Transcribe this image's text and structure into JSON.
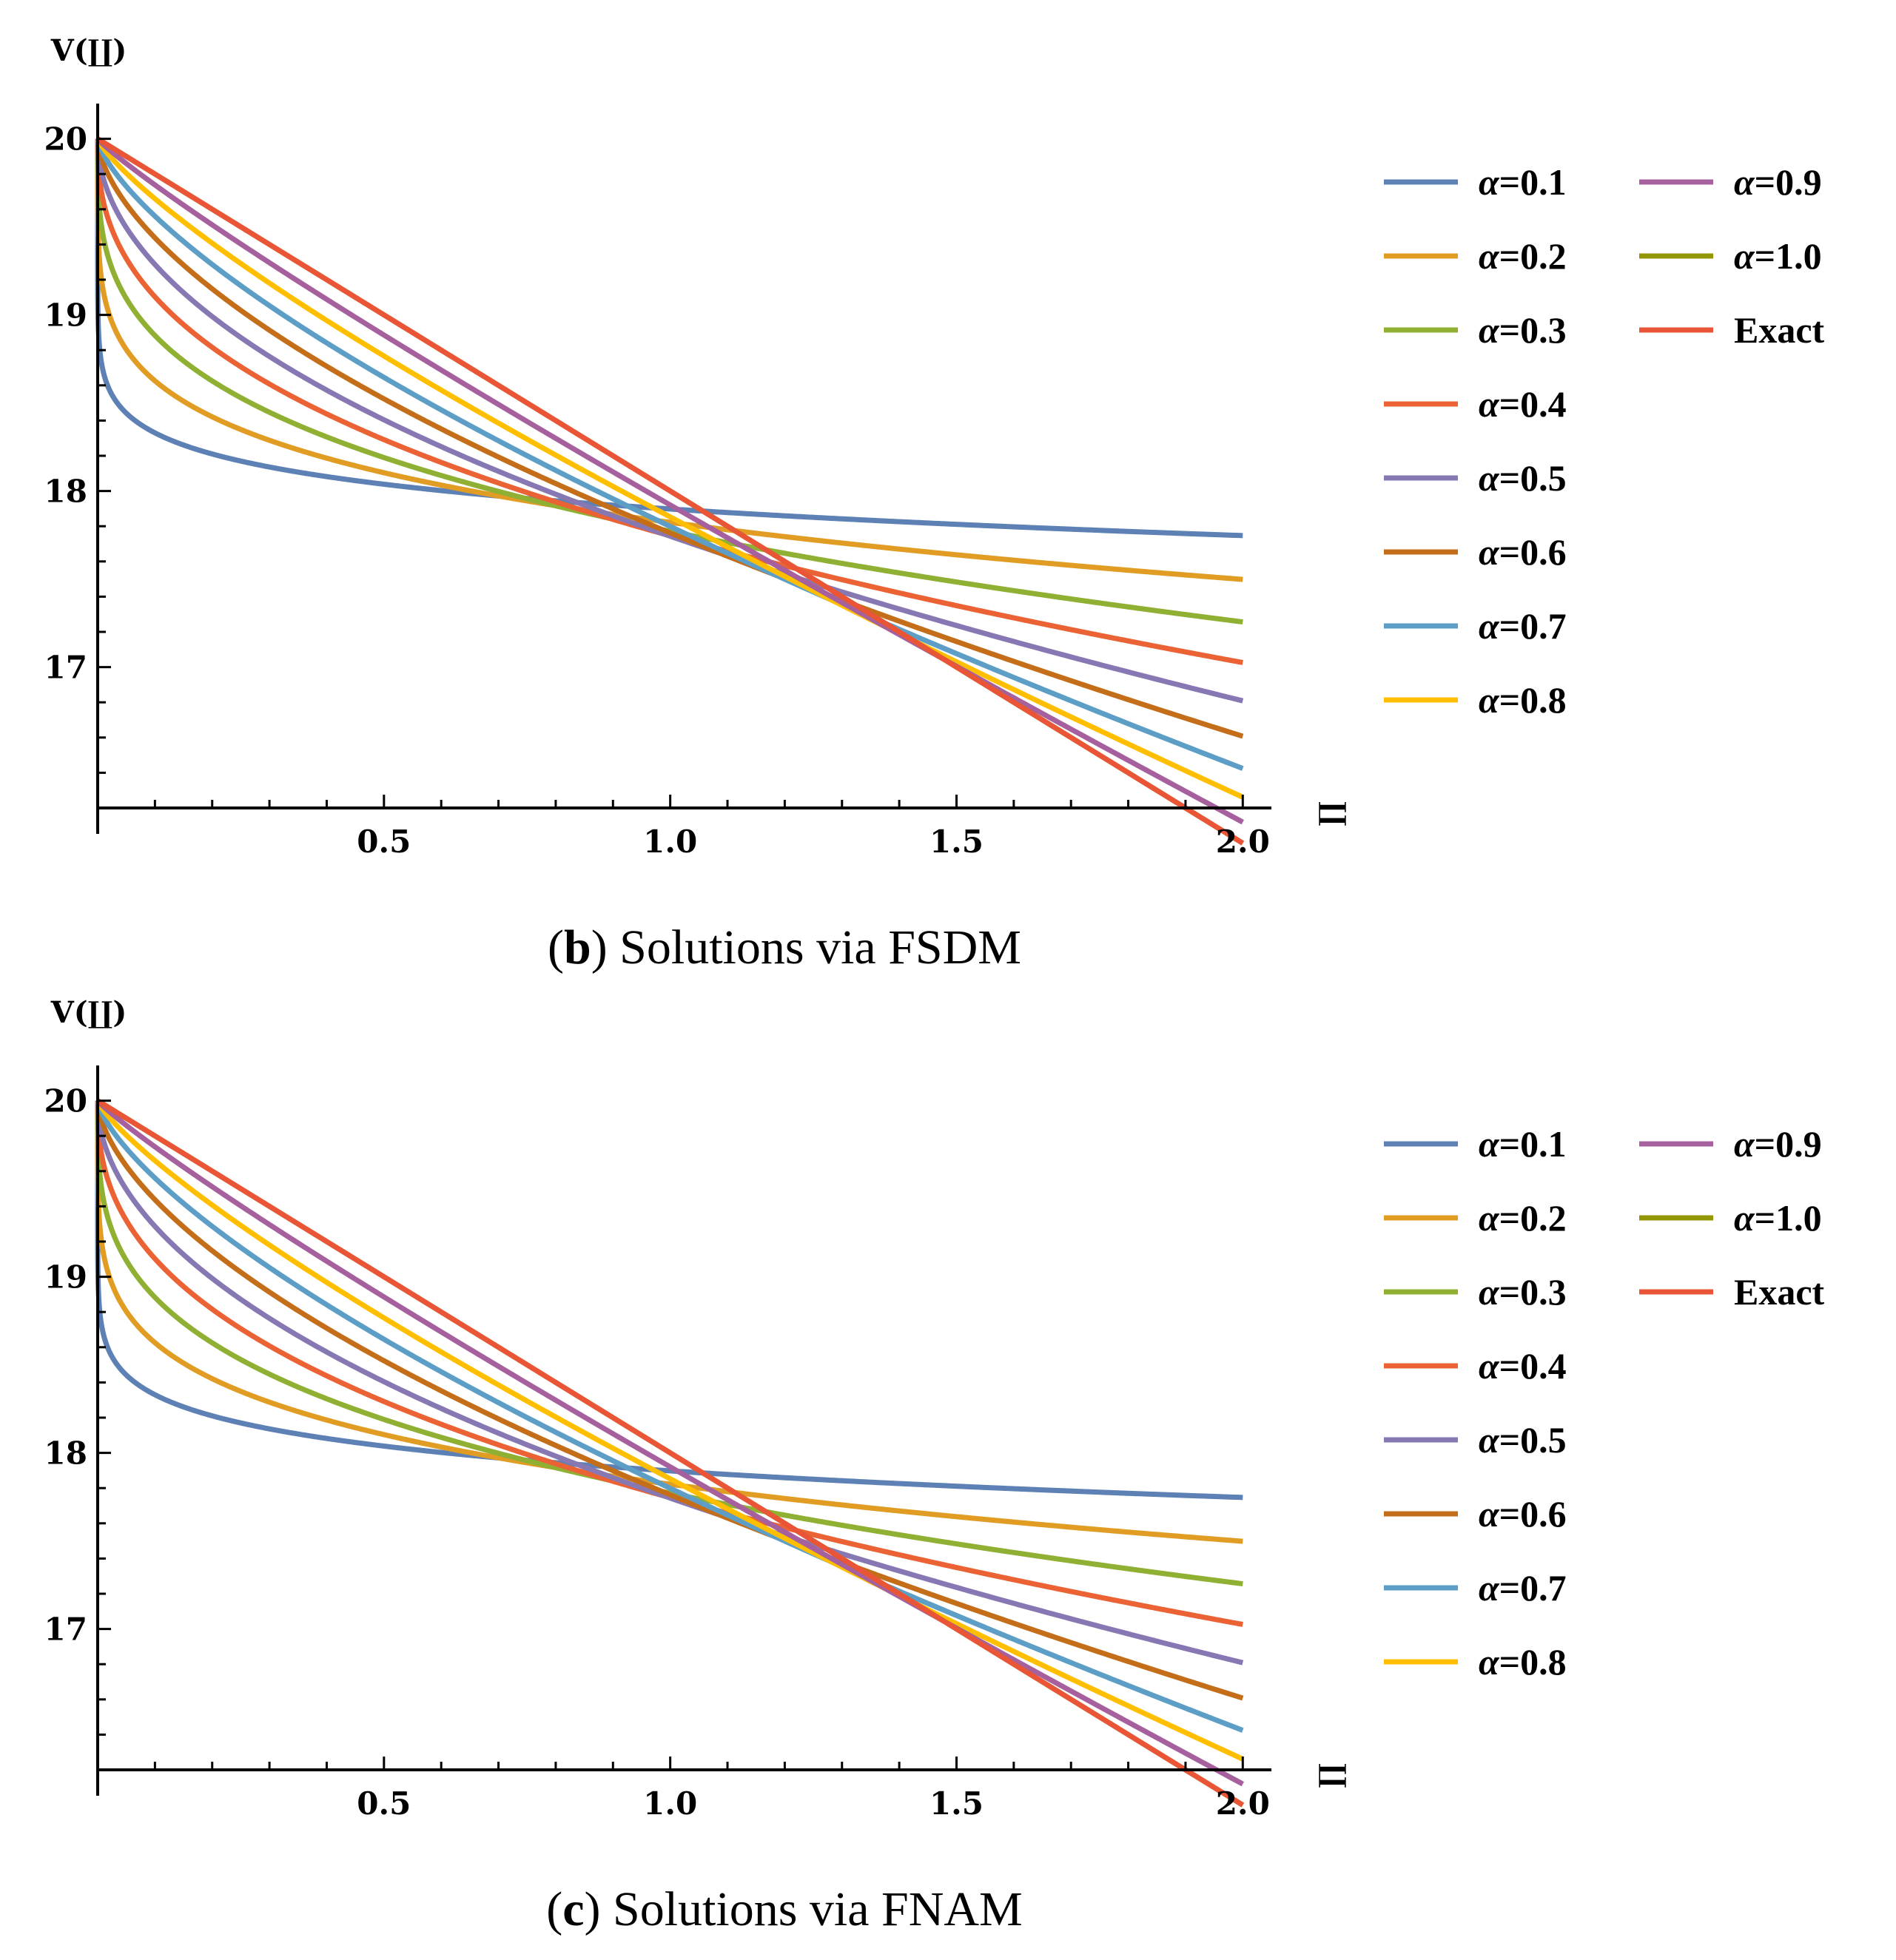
{
  "chart_data": [
    {
      "type": "line",
      "caption": {
        "letter": "b",
        "text": "Solutions via FSDM"
      },
      "ylabel": "V(∐)",
      "xlabel": "∐",
      "xlim": [
        0,
        2.05
      ],
      "ylim": [
        16.2,
        20.2
      ],
      "x_ticks": [
        "0.5",
        "1.0",
        "1.5",
        "2.0"
      ],
      "y_ticks": [
        "17",
        "18",
        "19",
        "20"
      ],
      "legend_position": "right",
      "series": [
        {
          "name": "α=0.1",
          "alpha": 0.1,
          "color": "#5E81B5"
        },
        {
          "name": "α=0.2",
          "alpha": 0.2,
          "color": "#E19C24"
        },
        {
          "name": "α=0.3",
          "alpha": 0.3,
          "color": "#8FB032"
        },
        {
          "name": "α=0.4",
          "alpha": 0.4,
          "color": "#EB6235"
        },
        {
          "name": "α=0.5",
          "alpha": 0.5,
          "color": "#8778B3"
        },
        {
          "name": "α=0.6",
          "alpha": 0.6,
          "color": "#C56E1A"
        },
        {
          "name": "α=0.7",
          "alpha": 0.7,
          "color": "#5D9EC7"
        },
        {
          "name": "α=0.8",
          "alpha": 0.8,
          "color": "#FFBF00"
        },
        {
          "name": "α=0.9",
          "alpha": 0.9,
          "color": "#A5609D"
        },
        {
          "name": "α=1.0",
          "alpha": 1.0,
          "color": "#929600"
        },
        {
          "name": "Exact",
          "alpha": 1.0,
          "color": "#E95536"
        }
      ],
      "model": {
        "initial_value": 20,
        "slope": 2
      }
    },
    {
      "type": "line",
      "caption": {
        "letter": "c",
        "text": "Solutions via FNAM"
      },
      "ylabel": "V(∐)",
      "xlabel": "∐",
      "xlim": [
        0,
        2.05
      ],
      "ylim": [
        16.2,
        20.2
      ],
      "x_ticks": [
        "0.5",
        "1.0",
        "1.5",
        "2.0"
      ],
      "y_ticks": [
        "17",
        "18",
        "19",
        "20"
      ],
      "legend_position": "right",
      "series": [
        {
          "name": "α=0.1",
          "alpha": 0.1,
          "color": "#5E81B5"
        },
        {
          "name": "α=0.2",
          "alpha": 0.2,
          "color": "#E19C24"
        },
        {
          "name": "α=0.3",
          "alpha": 0.3,
          "color": "#8FB032"
        },
        {
          "name": "α=0.4",
          "alpha": 0.4,
          "color": "#EB6235"
        },
        {
          "name": "α=0.5",
          "alpha": 0.5,
          "color": "#8778B3"
        },
        {
          "name": "α=0.6",
          "alpha": 0.6,
          "color": "#C56E1A"
        },
        {
          "name": "α=0.7",
          "alpha": 0.7,
          "color": "#5D9EC7"
        },
        {
          "name": "α=0.8",
          "alpha": 0.8,
          "color": "#FFBF00"
        },
        {
          "name": "α=0.9",
          "alpha": 0.9,
          "color": "#A5609D"
        },
        {
          "name": "α=1.0",
          "alpha": 1.0,
          "color": "#929600"
        },
        {
          "name": "Exact",
          "alpha": 1.0,
          "color": "#E95536"
        }
      ],
      "model": {
        "initial_value": 20,
        "slope": 2
      }
    }
  ]
}
